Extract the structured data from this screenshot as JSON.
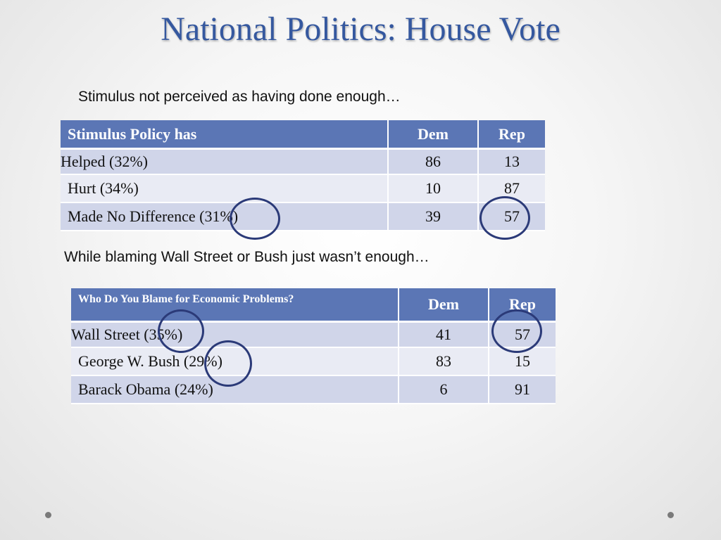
{
  "slide": {
    "title": "National Politics: House Vote",
    "caption1": "Stimulus not perceived as having done enough…",
    "caption2": "While blaming Wall Street or Bush just wasn’t enough…"
  },
  "table1": {
    "headers": [
      "Stimulus Policy has",
      "Dem",
      "Rep"
    ],
    "rows": [
      {
        "label": "Helped (32%)",
        "dem": "86",
        "rep": "13"
      },
      {
        "label": "Hurt (34%)",
        "dem": "10",
        "rep": "87"
      },
      {
        "label": "Made No Difference (31%)",
        "dem": "39",
        "rep": "57"
      }
    ]
  },
  "table2": {
    "headers": [
      "Who Do You Blame for Economic Problems?",
      "Dem",
      "Rep"
    ],
    "rows": [
      {
        "label": "Wall Street (35%)",
        "dem": "41",
        "rep": "57"
      },
      {
        "label": "George W. Bush (29%)",
        "dem": "83",
        "rep": "15"
      },
      {
        "label": "Barack Obama (24%)",
        "dem": "6",
        "rep": "91"
      }
    ]
  },
  "colors": {
    "title": "#35589f",
    "header_bg": "#5b76b5",
    "row_odd": "#d0d5e9",
    "row_even": "#e9ebf4",
    "circle": "#2b3a78"
  }
}
